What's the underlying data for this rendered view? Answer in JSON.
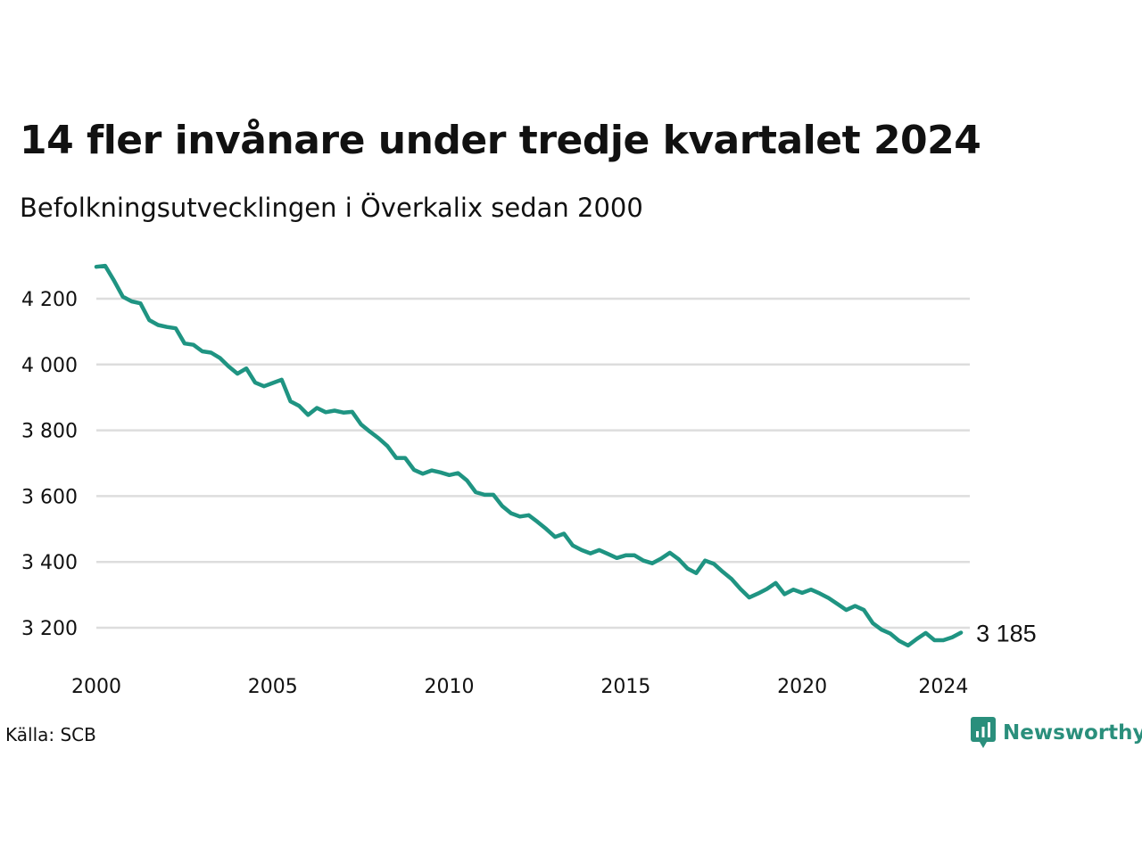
{
  "title": "14 fler invånare under tredje kvartalet 2024",
  "subtitle": "Befolkningsutvecklingen i Överkalix sedan 2000",
  "source": "Källa: SCB",
  "logo": {
    "name": "Newsworthy",
    "icon": "bar-chart-icon"
  },
  "colors": {
    "line": "#1f9482",
    "grid": "#dddddd",
    "brand": "#2a8f7c"
  },
  "chart_data": {
    "type": "line",
    "title": "14 fler invånare under tredje kvartalet 2024",
    "subtitle": "Befolkningsutvecklingen i Överkalix sedan 2000",
    "xlabel": "",
    "ylabel": "",
    "x_ticks": [
      "2000",
      "2005",
      "2010",
      "2015",
      "2020",
      "2024"
    ],
    "y_ticks": [
      "3 200",
      "3 400",
      "3 600",
      "3 800",
      "4 000",
      "4 200"
    ],
    "ylim": [
      3100,
      4300
    ],
    "xlim": [
      2000,
      2024.75
    ],
    "grid": true,
    "end_label": "3 185",
    "series": [
      {
        "values": [
          {
            "x": "2000 Q1",
            "y": 4297
          },
          {
            "x": "2000 Q2",
            "y": 4300
          },
          {
            "x": "2000 Q3",
            "y": 4255
          },
          {
            "x": "2000 Q4",
            "y": 4206
          },
          {
            "x": "2001 Q1",
            "y": 4192
          },
          {
            "x": "2001 Q2",
            "y": 4186
          },
          {
            "x": "2001 Q3",
            "y": 4135
          },
          {
            "x": "2001 Q4",
            "y": 4120
          },
          {
            "x": "2002 Q1",
            "y": 4114
          },
          {
            "x": "2002 Q2",
            "y": 4110
          },
          {
            "x": "2002 Q3",
            "y": 4064
          },
          {
            "x": "2002 Q4",
            "y": 4060
          },
          {
            "x": "2003 Q1",
            "y": 4040
          },
          {
            "x": "2003 Q2",
            "y": 4036
          },
          {
            "x": "2003 Q3",
            "y": 4020
          },
          {
            "x": "2003 Q4",
            "y": 3994
          },
          {
            "x": "2004 Q1",
            "y": 3972
          },
          {
            "x": "2004 Q2",
            "y": 3988
          },
          {
            "x": "2004 Q3",
            "y": 3945
          },
          {
            "x": "2004 Q4",
            "y": 3934
          },
          {
            "x": "2005 Q1",
            "y": 3944
          },
          {
            "x": "2005 Q2",
            "y": 3954
          },
          {
            "x": "2005 Q3",
            "y": 3888
          },
          {
            "x": "2005 Q4",
            "y": 3874
          },
          {
            "x": "2006 Q1",
            "y": 3847
          },
          {
            "x": "2006 Q2",
            "y": 3868
          },
          {
            "x": "2006 Q3",
            "y": 3855
          },
          {
            "x": "2006 Q4",
            "y": 3860
          },
          {
            "x": "2007 Q1",
            "y": 3854
          },
          {
            "x": "2007 Q2",
            "y": 3856
          },
          {
            "x": "2007 Q3",
            "y": 3818
          },
          {
            "x": "2007 Q4",
            "y": 3796
          },
          {
            "x": "2008 Q1",
            "y": 3776
          },
          {
            "x": "2008 Q2",
            "y": 3752
          },
          {
            "x": "2008 Q3",
            "y": 3716
          },
          {
            "x": "2008 Q4",
            "y": 3716
          },
          {
            "x": "2009 Q1",
            "y": 3680
          },
          {
            "x": "2009 Q2",
            "y": 3668
          },
          {
            "x": "2009 Q3",
            "y": 3678
          },
          {
            "x": "2009 Q4",
            "y": 3672
          },
          {
            "x": "2010 Q1",
            "y": 3664
          },
          {
            "x": "2010 Q2",
            "y": 3670
          },
          {
            "x": "2010 Q3",
            "y": 3648
          },
          {
            "x": "2010 Q4",
            "y": 3612
          },
          {
            "x": "2011 Q1",
            "y": 3604
          },
          {
            "x": "2011 Q2",
            "y": 3604
          },
          {
            "x": "2011 Q3",
            "y": 3570
          },
          {
            "x": "2011 Q4",
            "y": 3548
          },
          {
            "x": "2012 Q1",
            "y": 3538
          },
          {
            "x": "2012 Q2",
            "y": 3542
          },
          {
            "x": "2012 Q3",
            "y": 3522
          },
          {
            "x": "2012 Q4",
            "y": 3500
          },
          {
            "x": "2013 Q1",
            "y": 3476
          },
          {
            "x": "2013 Q2",
            "y": 3486
          },
          {
            "x": "2013 Q3",
            "y": 3450
          },
          {
            "x": "2013 Q4",
            "y": 3436
          },
          {
            "x": "2014 Q1",
            "y": 3426
          },
          {
            "x": "2014 Q2",
            "y": 3436
          },
          {
            "x": "2014 Q3",
            "y": 3424
          },
          {
            "x": "2014 Q4",
            "y": 3412
          },
          {
            "x": "2015 Q1",
            "y": 3420
          },
          {
            "x": "2015 Q2",
            "y": 3420
          },
          {
            "x": "2015 Q3",
            "y": 3404
          },
          {
            "x": "2015 Q4",
            "y": 3396
          },
          {
            "x": "2016 Q1",
            "y": 3410
          },
          {
            "x": "2016 Q2",
            "y": 3428
          },
          {
            "x": "2016 Q3",
            "y": 3408
          },
          {
            "x": "2016 Q4",
            "y": 3380
          },
          {
            "x": "2017 Q1",
            "y": 3366
          },
          {
            "x": "2017 Q2",
            "y": 3404
          },
          {
            "x": "2017 Q3",
            "y": 3394
          },
          {
            "x": "2017 Q4",
            "y": 3370
          },
          {
            "x": "2018 Q1",
            "y": 3348
          },
          {
            "x": "2018 Q2",
            "y": 3318
          },
          {
            "x": "2018 Q3",
            "y": 3292
          },
          {
            "x": "2018 Q4",
            "y": 3304
          },
          {
            "x": "2019 Q1",
            "y": 3318
          },
          {
            "x": "2019 Q2",
            "y": 3336
          },
          {
            "x": "2019 Q3",
            "y": 3302
          },
          {
            "x": "2019 Q4",
            "y": 3316
          },
          {
            "x": "2020 Q1",
            "y": 3306
          },
          {
            "x": "2020 Q2",
            "y": 3316
          },
          {
            "x": "2020 Q3",
            "y": 3304
          },
          {
            "x": "2020 Q4",
            "y": 3290
          },
          {
            "x": "2021 Q1",
            "y": 3272
          },
          {
            "x": "2021 Q2",
            "y": 3254
          },
          {
            "x": "2021 Q3",
            "y": 3266
          },
          {
            "x": "2021 Q4",
            "y": 3254
          },
          {
            "x": "2022 Q1",
            "y": 3214
          },
          {
            "x": "2022 Q2",
            "y": 3194
          },
          {
            "x": "2022 Q3",
            "y": 3182
          },
          {
            "x": "2022 Q4",
            "y": 3160
          },
          {
            "x": "2023 Q1",
            "y": 3146
          },
          {
            "x": "2023 Q2",
            "y": 3166
          },
          {
            "x": "2023 Q3",
            "y": 3184
          },
          {
            "x": "2023 Q4",
            "y": 3162
          },
          {
            "x": "2024 Q1",
            "y": 3162
          },
          {
            "x": "2024 Q2",
            "y": 3171
          },
          {
            "x": "2024 Q3",
            "y": 3185
          }
        ]
      }
    ]
  }
}
